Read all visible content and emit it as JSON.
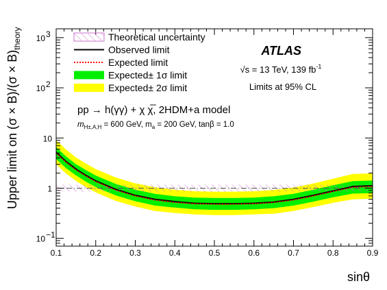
{
  "chart_data": {
    "type": "line",
    "xlabel": "sinθ",
    "ylabel": "Upper limit on (σ × B)/(σ × B)",
    "ylabel_sub": "theory",
    "xlim": [
      0.1,
      0.9
    ],
    "ylim": [
      0.07,
      1500
    ],
    "yscale": "log",
    "x_ticks": [
      "0.1",
      "0.2",
      "0.3",
      "0.4",
      "0.5",
      "0.6",
      "0.7",
      "0.8",
      "0.9"
    ],
    "y_ticks": [
      {
        "value": 0.1,
        "base": "10",
        "exp": "−1"
      },
      {
        "value": 1,
        "base": "1",
        "exp": ""
      },
      {
        "value": 10,
        "base": "10",
        "exp": ""
      },
      {
        "value": 100,
        "base": "10",
        "exp": "2"
      },
      {
        "value": 1000,
        "base": "10",
        "exp": "3"
      }
    ],
    "x": [
      0.1,
      0.125,
      0.15,
      0.175,
      0.2,
      0.25,
      0.3,
      0.35,
      0.4,
      0.45,
      0.5,
      0.55,
      0.6,
      0.65,
      0.7,
      0.75,
      0.8,
      0.85,
      0.9
    ],
    "series": [
      {
        "name": "Observed limit",
        "values": [
          5.2,
          3.4,
          2.4,
          1.8,
          1.4,
          0.95,
          0.72,
          0.6,
          0.54,
          0.5,
          0.49,
          0.49,
          0.5,
          0.53,
          0.6,
          0.72,
          0.88,
          1.08,
          1.12
        ],
        "color": "#000000"
      },
      {
        "name": "Expected limit",
        "values": [
          5.0,
          3.3,
          2.3,
          1.75,
          1.35,
          0.92,
          0.7,
          0.58,
          0.52,
          0.49,
          0.48,
          0.48,
          0.49,
          0.52,
          0.58,
          0.7,
          0.86,
          1.04,
          1.08
        ],
        "color": "#ff0000"
      },
      {
        "name": "Expected± 1σ limit",
        "lower": [
          3.8,
          2.5,
          1.8,
          1.35,
          1.05,
          0.72,
          0.55,
          0.45,
          0.41,
          0.38,
          0.37,
          0.37,
          0.38,
          0.4,
          0.45,
          0.54,
          0.66,
          0.78,
          0.8
        ],
        "upper": [
          6.6,
          4.3,
          3.0,
          2.3,
          1.78,
          1.22,
          0.93,
          0.77,
          0.69,
          0.65,
          0.64,
          0.64,
          0.65,
          0.69,
          0.77,
          0.93,
          1.14,
          1.38,
          1.42
        ],
        "color": "#00ee00"
      },
      {
        "name": "Expected± 2σ limit",
        "lower": [
          3.0,
          1.95,
          1.4,
          1.05,
          0.82,
          0.56,
          0.43,
          0.35,
          0.32,
          0.3,
          0.29,
          0.29,
          0.3,
          0.31,
          0.35,
          0.42,
          0.51,
          0.6,
          0.62
        ],
        "upper": [
          9.0,
          5.9,
          4.1,
          3.1,
          2.4,
          1.64,
          1.25,
          1.04,
          0.93,
          0.87,
          0.85,
          0.85,
          0.87,
          0.92,
          1.03,
          1.24,
          1.54,
          1.92,
          1.98
        ],
        "color": "#ffff00"
      }
    ],
    "theory_band": {
      "name": "Theoretical uncertainty",
      "lower": 0.85,
      "upper": 1.18,
      "line": 1.0,
      "xlim": [
        0.1,
        0.9
      ]
    },
    "legend": [
      {
        "label": "Theoretical uncertainty",
        "kind": "hatch"
      },
      {
        "label": "Observed limit",
        "kind": "solid"
      },
      {
        "label": "Expected limit",
        "kind": "dotted"
      },
      {
        "label": "Expected± 1σ limit",
        "kind": "green"
      },
      {
        "label": "Expected± 2σ limit",
        "kind": "yellow"
      }
    ],
    "legend_position": "top-left",
    "annotations": {
      "experiment": "ATLAS",
      "energy": "√s = 13 TeV, 139 fb",
      "energy_sup": "-1",
      "cl": "Limits at 95% CL",
      "model": "pp → h(γγ) + χ χ̅, 2HDM+a model",
      "params": "m",
      "params_sub": "H±,A,H",
      "params_mid": " = 600 GeV, m",
      "params_sub2": "a",
      "params_end": " = 200 GeV, tanβ = 1.0"
    }
  }
}
